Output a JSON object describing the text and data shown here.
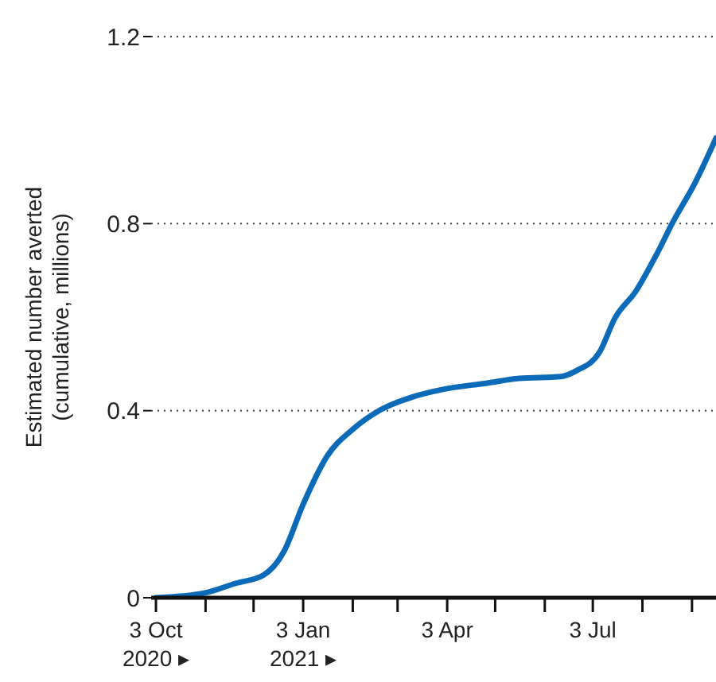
{
  "chart_data": {
    "type": "line",
    "ylabel": "Estimated number averted\n(cumulative, millions)",
    "x": [
      "2020-10-03",
      "2020-11-02",
      "2020-11-22",
      "2020-12-09",
      "2020-12-22",
      "2021-01-03",
      "2021-01-18",
      "2021-02-03",
      "2021-02-20",
      "2021-03-12",
      "2021-04-01",
      "2021-04-28",
      "2021-05-18",
      "2021-06-13",
      "2021-06-23",
      "2021-07-07",
      "2021-07-17",
      "2021-07-30",
      "2021-08-12",
      "2021-08-22",
      "2021-09-05",
      "2021-09-18"
    ],
    "series": [
      {
        "color": "#0b6bb8",
        "values": [
          0,
          0.01,
          0.031,
          0.048,
          0.099,
          0.2,
          0.303,
          0.36,
          0.401,
          0.429,
          0.446,
          0.459,
          0.469,
          0.473,
          0.486,
          0.524,
          0.599,
          0.656,
          0.735,
          0.803,
          0.888,
          0.983
        ]
      }
    ],
    "xlim": [
      "2020-09-30",
      "2021-09-18"
    ],
    "xticks": [
      {
        "value": "2020-10-03",
        "label": "3 Oct\n2020 ▸"
      },
      {
        "value": "2020-11-03",
        "label": null
      },
      {
        "value": "2020-12-03",
        "label": null
      },
      {
        "value": "2021-01-03",
        "label": "3 Jan\n2021 ▸"
      },
      {
        "value": "2021-02-03",
        "label": null
      },
      {
        "value": "2021-03-03",
        "label": null
      },
      {
        "value": "2021-04-03",
        "label": "3 Apr"
      },
      {
        "value": "2021-05-03",
        "label": null
      },
      {
        "value": "2021-06-03",
        "label": null
      },
      {
        "value": "2021-07-03",
        "label": "3 Jul"
      },
      {
        "value": "2021-08-03",
        "label": null
      },
      {
        "value": "2021-09-03",
        "label": null
      }
    ],
    "ylim": [
      0,
      1.2
    ],
    "yticks": [
      0,
      0.4,
      0.8,
      1.2
    ],
    "grid": "y",
    "marker": "none",
    "line_style": "solid"
  }
}
